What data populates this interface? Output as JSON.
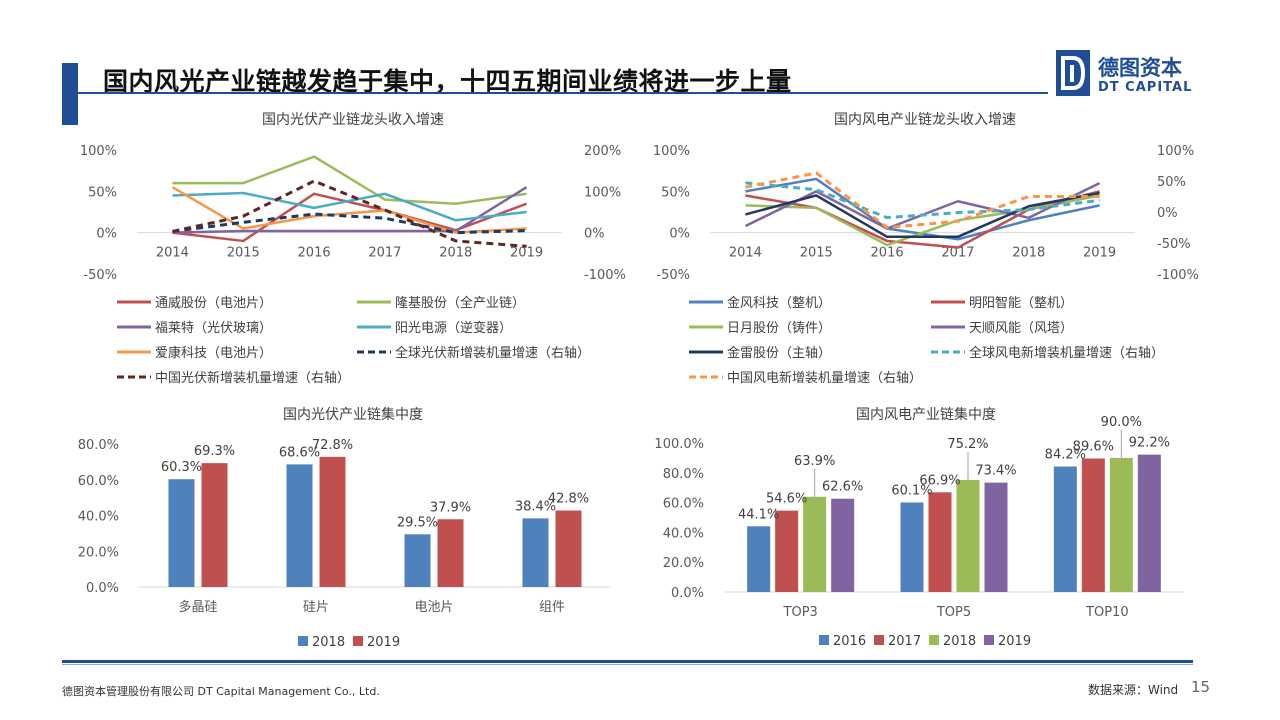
{
  "header": {
    "title": "国内风光产业链越发趋于集中，十四五期间业绩将进一步上量",
    "logo_cn": "德图资本",
    "logo_en": "DT CAPITAL",
    "brand_color": "#1f4e96"
  },
  "footer": {
    "company": "德图资本管理股份有限公司  DT Capital Management  Co., Ltd.",
    "source": "数据来源：Wind",
    "page": "15"
  },
  "chart_data": [
    {
      "type": "line",
      "title": "国内光伏产业链龙头收入增速",
      "x": [
        "2014",
        "2015",
        "2016",
        "2017",
        "2018",
        "2019"
      ],
      "ylim": [
        -50,
        100
      ],
      "y_ticks": [
        "100%",
        "50%",
        "0%",
        "-50%"
      ],
      "y2lim": [
        -100,
        200
      ],
      "y2_ticks": [
        "200%",
        "100%",
        "0%",
        "-100%"
      ],
      "grid": false,
      "legend_position": "bottom",
      "series": [
        {
          "name": "通威股份（电池片）",
          "values": [
            0,
            -10,
            47,
            27,
            3,
            35
          ],
          "color": "#c0504d",
          "axis": "left",
          "dash": false
        },
        {
          "name": "隆基股份（全产业链）",
          "values": [
            60,
            60,
            92,
            40,
            35,
            47
          ],
          "color": "#9bbb59",
          "axis": "left",
          "dash": false
        },
        {
          "name": "福莱特（光伏玻璃）",
          "values": [
            0,
            2,
            2,
            2,
            2,
            55
          ],
          "color": "#8064a2",
          "axis": "left",
          "dash": false
        },
        {
          "name": "阳光电源（逆变器）",
          "values": [
            45,
            48,
            30,
            47,
            15,
            25
          ],
          "color": "#4bacc6",
          "axis": "left",
          "dash": false
        },
        {
          "name": "爱康科技（电池片）",
          "values": [
            55,
            5,
            20,
            27,
            0,
            5
          ],
          "color": "#f79646",
          "axis": "left",
          "dash": false
        },
        {
          "name": "全球光伏新增装机量增速（右轴）",
          "values": [
            3,
            25,
            45,
            35,
            0,
            5
          ],
          "color": "#1f3864",
          "axis": "right",
          "dash": true
        },
        {
          "name": "中国光伏新增装机量增速（右轴）",
          "values": [
            3,
            40,
            125,
            55,
            -20,
            -33
          ],
          "color": "#632523",
          "axis": "right",
          "dash": true
        }
      ]
    },
    {
      "type": "line",
      "title": "国内风电产业链龙头收入增速",
      "x": [
        "2014",
        "2015",
        "2016",
        "2017",
        "2018",
        "2019"
      ],
      "ylim": [
        -50,
        100
      ],
      "y_ticks": [
        "100%",
        "50%",
        "0%",
        "-50%"
      ],
      "y2lim": [
        -100,
        100
      ],
      "y2_ticks": [
        "100%",
        "50%",
        "0%",
        "-50%",
        "-100%"
      ],
      "grid": false,
      "legend_position": "bottom",
      "series": [
        {
          "name": "金风科技（整机）",
          "values": [
            50,
            65,
            5,
            -8,
            15,
            33
          ],
          "color": "#4f81bd",
          "axis": "left",
          "dash": false
        },
        {
          "name": "明阳智能（整机）",
          "values": [
            45,
            30,
            -10,
            -18,
            28,
            50
          ],
          "color": "#c0504d",
          "axis": "left",
          "dash": false
        },
        {
          "name": "日月股份（铸件）",
          "values": [
            33,
            30,
            -15,
            15,
            28,
            45
          ],
          "color": "#9bbb59",
          "axis": "left",
          "dash": false
        },
        {
          "name": "天顺风能（风塔）",
          "values": [
            8,
            50,
            5,
            38,
            18,
            60
          ],
          "color": "#8064a2",
          "axis": "left",
          "dash": false
        },
        {
          "name": "金雷股份（主轴）",
          "values": [
            22,
            45,
            -5,
            -5,
            32,
            48
          ],
          "color": "#1f3864",
          "axis": "left",
          "dash": false
        },
        {
          "name": "全球风电新增装机量增速（右轴）",
          "values": [
            47,
            36,
            -9,
            -1,
            4,
            19
          ],
          "color": "#4bacc6",
          "axis": "right",
          "dash": true
        },
        {
          "name": "中国风电新增装机量增速（右轴）",
          "values": [
            40,
            63,
            -25,
            -15,
            25,
            25
          ],
          "color": "#f79646",
          "axis": "right",
          "dash": true
        }
      ]
    },
    {
      "type": "bar",
      "title": "国内光伏产业链集中度",
      "categories": [
        "多晶硅",
        "硅片",
        "电池片",
        "组件"
      ],
      "ylim": [
        0,
        80
      ],
      "y_ticks": [
        "80.0%",
        "60.0%",
        "40.0%",
        "20.0%",
        "0.0%"
      ],
      "grid": false,
      "legend_position": "bottom",
      "series": [
        {
          "name": "2018",
          "values": [
            60.3,
            68.6,
            29.5,
            38.4
          ],
          "labels": [
            "60.3%",
            "68.6%",
            "29.5%",
            "38.4%"
          ],
          "color": "#4f81bd"
        },
        {
          "name": "2019",
          "values": [
            69.3,
            72.8,
            37.9,
            42.8
          ],
          "labels": [
            "69.3%",
            "72.8%",
            "37.9%",
            "42.8%"
          ],
          "color": "#c0504d"
        }
      ]
    },
    {
      "type": "bar",
      "title": "国内风电产业链集中度",
      "categories": [
        "TOP3",
        "TOP5",
        "TOP10"
      ],
      "ylim": [
        0,
        100
      ],
      "y_ticks": [
        "100.0%",
        "80.0%",
        "60.0%",
        "40.0%",
        "20.0%",
        "0.0%"
      ],
      "grid": false,
      "legend_position": "bottom",
      "series": [
        {
          "name": "2016",
          "values": [
            44.1,
            60.1,
            84.2
          ],
          "labels": [
            "44.1%",
            "60.1%",
            "84.2%"
          ],
          "color": "#4f81bd"
        },
        {
          "name": "2017",
          "values": [
            54.6,
            66.9,
            89.6
          ],
          "labels": [
            "54.6%",
            "66.9%",
            "89.6%"
          ],
          "color": "#c0504d"
        },
        {
          "name": "2018",
          "values": [
            63.9,
            75.2,
            90.0
          ],
          "labels": [
            "63.9%",
            "75.2%",
            "90.0%"
          ],
          "color": "#9bbb59"
        },
        {
          "name": "2019",
          "values": [
            62.6,
            73.4,
            92.2
          ],
          "labels": [
            "62.6%",
            "73.4%",
            "92.2%"
          ],
          "color": "#8064a2"
        }
      ]
    }
  ]
}
